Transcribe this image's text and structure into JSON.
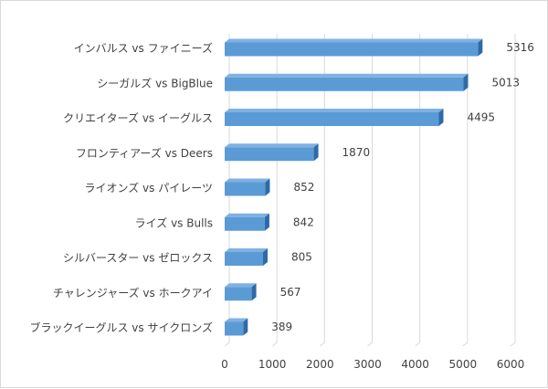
{
  "chart_data": {
    "type": "bar",
    "orientation": "horizontal",
    "style": "3d-bar",
    "title": "",
    "xlabel": "",
    "ylabel": "",
    "categories": [
      "インバルス vs ファイニーズ",
      "シーガルズ vs BigBlue",
      "クリエイターズ vs イーグルス",
      "フロンティアーズ vs Deers",
      "ライオンズ vs パイレーツ",
      "ライズ vs Bulls",
      "シルバースター vs ゼロックス",
      "チャレンジャーズ vs ホークアイ",
      "ブラックイーグルス vs サイクロンズ"
    ],
    "values": [
      5316,
      5013,
      4495,
      1870,
      852,
      842,
      805,
      567,
      389
    ],
    "xlim": [
      0,
      6000
    ],
    "xticks": [
      0,
      1000,
      2000,
      3000,
      4000,
      5000,
      6000
    ],
    "gridlines": "vertical",
    "data_labels": true,
    "legend": "none",
    "colors": {
      "bar_front": "#5b9bd5",
      "bar_top": "#7fb1e3",
      "bar_side": "#2e6aa6",
      "grid": "#d9d9d9",
      "text": "#404040"
    }
  }
}
